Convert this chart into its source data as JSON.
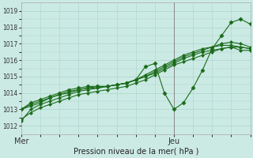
{
  "xlabel": "Pression niveau de la mer( hPa )",
  "background_color": "#cceae4",
  "grid_color": "#aad4cc",
  "line_color": "#1a6b1a",
  "vline_color": "#888888",
  "ylim": [
    1011.5,
    1019.5
  ],
  "yticks": [
    1012,
    1013,
    1014,
    1015,
    1016,
    1017,
    1018,
    1019
  ],
  "day_labels": [
    "Mer",
    "Jeu"
  ],
  "day_positions": [
    0.0,
    16.0
  ],
  "xlim": [
    0,
    24
  ],
  "jeu_x": 16.0,
  "series": [
    [
      1012.3,
      1013.0,
      1013.3,
      1013.5,
      1013.7,
      1013.9,
      1014.1,
      1014.2,
      1014.3,
      1014.4,
      1014.5,
      1014.6,
      1014.8,
      1015.0,
      1015.2,
      1015.5,
      1015.8,
      1016.1,
      1016.3,
      1016.5,
      1016.6,
      1016.7,
      1016.8,
      1016.6,
      1016.6
    ],
    [
      1013.0,
      1013.3,
      1013.5,
      1013.7,
      1013.9,
      1014.0,
      1014.2,
      1014.3,
      1014.4,
      1014.4,
      1014.5,
      1014.6,
      1014.8,
      1015.1,
      1015.4,
      1015.7,
      1016.0,
      1016.3,
      1016.5,
      1016.7,
      1016.8,
      1016.9,
      1016.9,
      1016.8,
      1016.7
    ],
    [
      1013.0,
      1013.4,
      1013.6,
      1013.8,
      1014.0,
      1014.2,
      1014.3,
      1014.4,
      1014.4,
      1014.4,
      1014.5,
      1014.6,
      1014.8,
      1015.6,
      1015.8,
      1014.0,
      1013.0,
      1013.4,
      1014.3,
      1015.4,
      1016.7,
      1017.5,
      1018.3,
      1018.5,
      1018.2
    ],
    [
      1013.0,
      1013.2,
      1013.4,
      1013.7,
      1013.9,
      1014.1,
      1014.2,
      1014.3,
      1014.3,
      1014.4,
      1014.5,
      1014.6,
      1014.8,
      1015.0,
      1015.3,
      1015.6,
      1015.9,
      1016.2,
      1016.4,
      1016.6,
      1016.8,
      1017.0,
      1017.1,
      1017.0,
      1016.8
    ],
    [
      1012.4,
      1012.8,
      1013.1,
      1013.3,
      1013.5,
      1013.7,
      1013.9,
      1014.0,
      1014.1,
      1014.2,
      1014.3,
      1014.4,
      1014.6,
      1014.8,
      1015.1,
      1015.4,
      1015.7,
      1015.9,
      1016.1,
      1016.3,
      1016.5,
      1016.7,
      1016.8,
      1016.8,
      1016.7
    ]
  ],
  "volatile_idx": 2,
  "xlabel_fontsize": 7,
  "tick_fontsize": 5.5,
  "linewidth": 0.8,
  "marker_size": 2.2
}
